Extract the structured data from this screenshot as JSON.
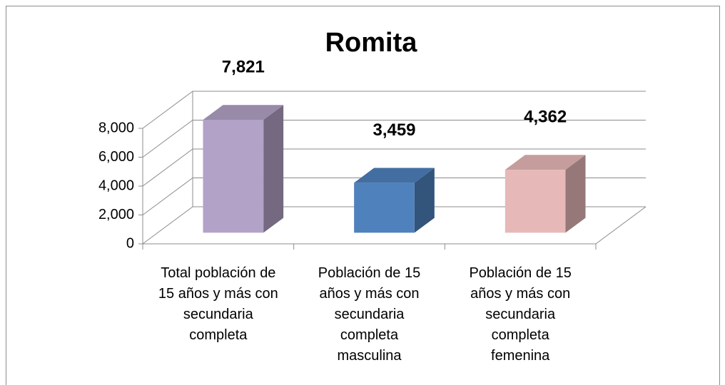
{
  "chart_data": {
    "type": "bar3d",
    "title": "Romita",
    "categories": [
      "Total población de\n15 años y más con\nsecundaria\ncompleta",
      "Población de 15\naños y más con\nsecundaria\ncompleta\nmasculina",
      "Población de 15\naños y más con\nsecundaria\ncompleta\nfemenina"
    ],
    "values": [
      7821,
      3459,
      4362
    ],
    "value_labels": [
      "7,821",
      "3,459",
      "4,362"
    ],
    "colors": [
      "#b3a2c7",
      "#4f81bd",
      "#e6b9b8"
    ],
    "ylim": [
      0,
      8000
    ],
    "yticks": [
      0,
      {
        "value": 2000,
        "label": "2,000"
      },
      {
        "value": 4000,
        "label": "4,000"
      },
      {
        "value": 6000,
        "label": "6,000"
      },
      {
        "value": 8000,
        "label": "8,000"
      }
    ],
    "grid": true
  }
}
